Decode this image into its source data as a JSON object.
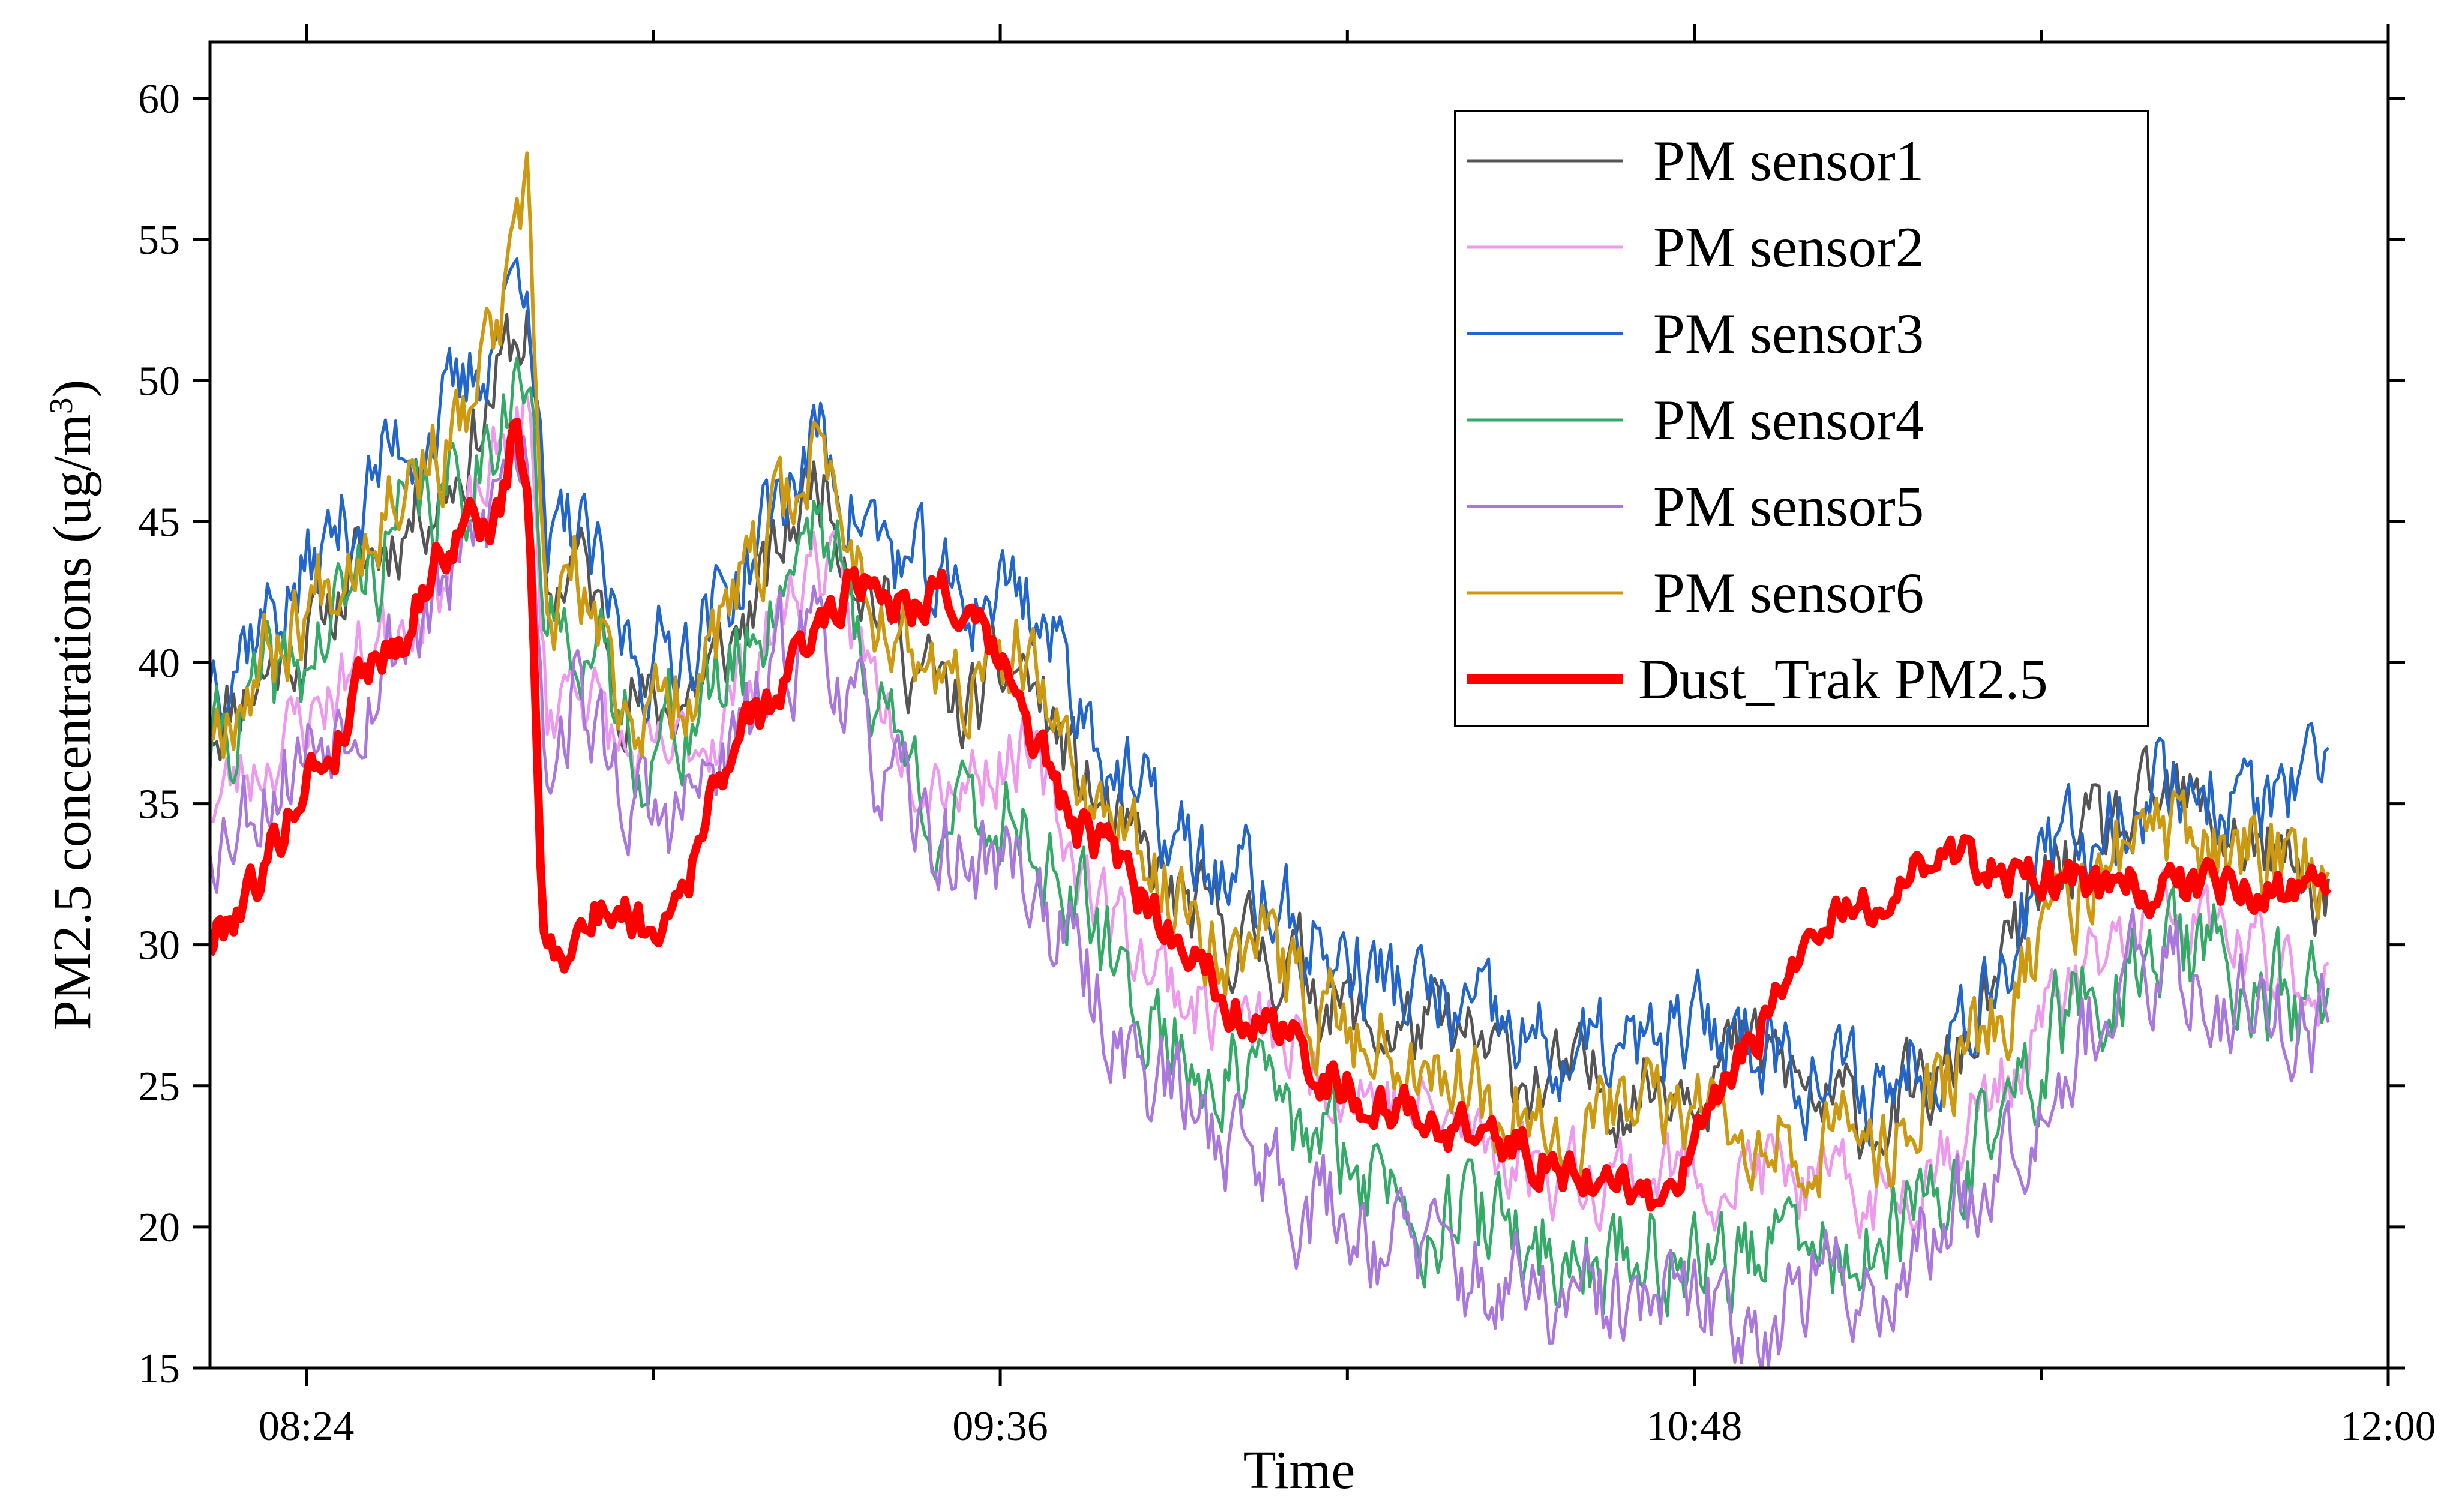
{
  "chart_data": {
    "type": "line",
    "title": "",
    "xlabel": "Time",
    "ylabel_main": "PM2.5 concentrations (ug/m",
    "ylabel_sup": "3",
    "ylabel_close": ")",
    "xlim": [
      494,
      720
    ],
    "ylim": [
      15,
      62
    ],
    "x_ticks": [
      {
        "value": 504,
        "label": "08:24"
      },
      {
        "value": 576,
        "label": "09:36"
      },
      {
        "value": 648,
        "label": "10:48"
      },
      {
        "value": 720,
        "label": "12:00"
      }
    ],
    "x_minor_ticks": [
      540,
      612,
      684
    ],
    "y_ticks": [
      15,
      20,
      25,
      30,
      35,
      40,
      45,
      50,
      55,
      60
    ],
    "x_unit": "minutes since 00:00",
    "legend_position": "top-right",
    "series": [
      {
        "name": "PM sensor1",
        "color": "#555555",
        "width": 5,
        "seed": 11,
        "noise": 1.5,
        "offset_pts": [
          [
            494,
            38
          ],
          [
            504,
            41
          ],
          [
            514,
            45
          ],
          [
            520,
            47
          ],
          [
            525,
            51
          ],
          [
            527,
            52
          ],
          [
            529,
            42
          ],
          [
            532,
            44
          ],
          [
            536,
            40
          ],
          [
            540,
            38
          ],
          [
            547,
            40
          ],
          [
            552,
            43
          ],
          [
            557,
            47
          ],
          [
            562,
            43
          ],
          [
            567,
            40
          ],
          [
            572,
            38
          ],
          [
            578,
            40
          ],
          [
            584,
            36
          ],
          [
            590,
            33
          ],
          [
            596,
            31
          ],
          [
            602,
            30
          ],
          [
            608,
            29
          ],
          [
            614,
            27
          ],
          [
            620,
            27
          ],
          [
            626,
            26
          ],
          [
            634,
            25
          ],
          [
            642,
            25
          ],
          [
            650,
            26
          ],
          [
            656,
            26
          ],
          [
            662,
            24
          ],
          [
            668,
            24
          ],
          [
            674,
            25
          ],
          [
            680,
            29
          ],
          [
            686,
            33
          ],
          [
            692,
            34
          ],
          [
            698,
            35
          ],
          [
            704,
            34
          ],
          [
            708,
            33
          ],
          [
            712,
            32
          ],
          [
            714,
            32
          ]
        ]
      },
      {
        "name": "PM sensor2",
        "color": "#ee99ee",
        "width": 5,
        "seed": 23,
        "noise": 1.4,
        "offset_pts": [
          [
            494,
            35
          ],
          [
            504,
            38
          ],
          [
            514,
            42
          ],
          [
            520,
            44
          ],
          [
            525,
            48
          ],
          [
            527,
            49
          ],
          [
            529,
            38
          ],
          [
            532,
            40
          ],
          [
            536,
            37
          ],
          [
            540,
            36
          ],
          [
            547,
            38
          ],
          [
            552,
            41
          ],
          [
            557,
            44
          ],
          [
            562,
            40
          ],
          [
            567,
            37
          ],
          [
            572,
            36
          ],
          [
            578,
            37
          ],
          [
            584,
            33
          ],
          [
            590,
            30
          ],
          [
            596,
            28
          ],
          [
            602,
            27
          ],
          [
            608,
            26
          ],
          [
            614,
            25
          ],
          [
            620,
            24
          ],
          [
            626,
            23
          ],
          [
            634,
            22
          ],
          [
            642,
            22
          ],
          [
            650,
            22
          ],
          [
            656,
            22
          ],
          [
            662,
            21
          ],
          [
            668,
            21
          ],
          [
            674,
            23
          ],
          [
            680,
            25
          ],
          [
            686,
            28
          ],
          [
            692,
            30
          ],
          [
            698,
            31
          ],
          [
            704,
            30
          ],
          [
            708,
            29
          ],
          [
            712,
            29
          ],
          [
            714,
            29
          ]
        ]
      },
      {
        "name": "PM sensor3",
        "color": "#2266cc",
        "width": 5,
        "seed": 37,
        "noise": 1.7,
        "offset_pts": [
          [
            494,
            40
          ],
          [
            504,
            43
          ],
          [
            514,
            48
          ],
          [
            520,
            49
          ],
          [
            525,
            53
          ],
          [
            527,
            55
          ],
          [
            529,
            43
          ],
          [
            532,
            45
          ],
          [
            536,
            41
          ],
          [
            540,
            40
          ],
          [
            547,
            42
          ],
          [
            552,
            45
          ],
          [
            557,
            48
          ],
          [
            562,
            45
          ],
          [
            567,
            43
          ],
          [
            572,
            42
          ],
          [
            578,
            43
          ],
          [
            584,
            39
          ],
          [
            590,
            35
          ],
          [
            596,
            33
          ],
          [
            602,
            32
          ],
          [
            608,
            30
          ],
          [
            614,
            29
          ],
          [
            620,
            28
          ],
          [
            626,
            27
          ],
          [
            634,
            26
          ],
          [
            642,
            26
          ],
          [
            650,
            27
          ],
          [
            656,
            27
          ],
          [
            662,
            25
          ],
          [
            668,
            25
          ],
          [
            674,
            27
          ],
          [
            680,
            30
          ],
          [
            686,
            33
          ],
          [
            692,
            35
          ],
          [
            698,
            36
          ],
          [
            704,
            35
          ],
          [
            708,
            35
          ],
          [
            712,
            35
          ],
          [
            714,
            35
          ]
        ]
      },
      {
        "name": "PM sensor4",
        "color": "#33aa66",
        "width": 5,
        "seed": 41,
        "noise": 1.8,
        "offset_pts": [
          [
            494,
            37
          ],
          [
            504,
            40
          ],
          [
            514,
            45
          ],
          [
            520,
            46
          ],
          [
            525,
            50
          ],
          [
            527,
            50
          ],
          [
            529,
            40
          ],
          [
            532,
            42
          ],
          [
            536,
            38
          ],
          [
            540,
            37
          ],
          [
            547,
            39
          ],
          [
            552,
            42
          ],
          [
            557,
            46
          ],
          [
            562,
            40
          ],
          [
            567,
            36
          ],
          [
            572,
            34
          ],
          [
            578,
            35
          ],
          [
            584,
            31
          ],
          [
            590,
            28
          ],
          [
            596,
            26
          ],
          [
            602,
            25
          ],
          [
            608,
            23
          ],
          [
            614,
            22
          ],
          [
            620,
            21
          ],
          [
            626,
            20
          ],
          [
            634,
            19
          ],
          [
            642,
            19
          ],
          [
            650,
            19
          ],
          [
            656,
            19
          ],
          [
            662,
            19
          ],
          [
            668,
            19
          ],
          [
            674,
            21
          ],
          [
            680,
            24
          ],
          [
            686,
            27
          ],
          [
            692,
            29
          ],
          [
            698,
            30
          ],
          [
            704,
            29
          ],
          [
            708,
            28
          ],
          [
            712,
            28
          ],
          [
            714,
            28
          ]
        ]
      },
      {
        "name": "PM sensor5",
        "color": "#aa77dd",
        "width": 5,
        "seed": 53,
        "noise": 1.8,
        "offset_pts": [
          [
            494,
            34
          ],
          [
            504,
            37
          ],
          [
            514,
            41
          ],
          [
            520,
            43
          ],
          [
            525,
            47
          ],
          [
            527,
            48
          ],
          [
            529,
            37
          ],
          [
            532,
            39
          ],
          [
            536,
            36
          ],
          [
            540,
            34
          ],
          [
            547,
            36
          ],
          [
            552,
            39
          ],
          [
            557,
            42
          ],
          [
            562,
            37
          ],
          [
            567,
            34
          ],
          [
            572,
            33
          ],
          [
            578,
            33
          ],
          [
            584,
            29
          ],
          [
            590,
            26
          ],
          [
            596,
            24
          ],
          [
            602,
            23
          ],
          [
            608,
            21
          ],
          [
            614,
            20
          ],
          [
            620,
            19
          ],
          [
            626,
            18
          ],
          [
            634,
            17
          ],
          [
            642,
            17
          ],
          [
            650,
            17
          ],
          [
            656,
            17
          ],
          [
            662,
            18
          ],
          [
            668,
            18
          ],
          [
            674,
            20
          ],
          [
            680,
            23
          ],
          [
            686,
            26
          ],
          [
            692,
            28
          ],
          [
            698,
            29
          ],
          [
            704,
            28
          ],
          [
            708,
            28
          ],
          [
            712,
            27
          ],
          [
            714,
            27
          ]
        ]
      },
      {
        "name": "PM sensor6",
        "color": "#cc9911",
        "width": 6,
        "seed": 67,
        "noise": 1.6,
        "offset_pts": [
          [
            494,
            38
          ],
          [
            504,
            42
          ],
          [
            514,
            47
          ],
          [
            520,
            48
          ],
          [
            525,
            53
          ],
          [
            527,
            56
          ],
          [
            529,
            41
          ],
          [
            532,
            43
          ],
          [
            536,
            39
          ],
          [
            540,
            38
          ],
          [
            547,
            41
          ],
          [
            552,
            44
          ],
          [
            557,
            48
          ],
          [
            562,
            43
          ],
          [
            567,
            40
          ],
          [
            572,
            39
          ],
          [
            578,
            40
          ],
          [
            584,
            36
          ],
          [
            590,
            33
          ],
          [
            596,
            31
          ],
          [
            602,
            30
          ],
          [
            608,
            28
          ],
          [
            614,
            27
          ],
          [
            620,
            26
          ],
          [
            626,
            25
          ],
          [
            634,
            24
          ],
          [
            642,
            24
          ],
          [
            650,
            24
          ],
          [
            656,
            24
          ],
          [
            662,
            23
          ],
          [
            668,
            23
          ],
          [
            674,
            25
          ],
          [
            680,
            28
          ],
          [
            686,
            31
          ],
          [
            692,
            33
          ],
          [
            698,
            34
          ],
          [
            704,
            33
          ],
          [
            708,
            33
          ],
          [
            712,
            33
          ],
          [
            714,
            32
          ]
        ]
      },
      {
        "name": "Dust_Trak PM2.5",
        "color": "#ff0000",
        "width": 14,
        "seed": 79,
        "noise": 0.8,
        "offset_pts": [
          [
            494,
            30
          ],
          [
            496,
            31
          ],
          [
            500,
            33
          ],
          [
            504,
            36
          ],
          [
            507,
            37
          ],
          [
            510,
            40
          ],
          [
            514,
            41
          ],
          [
            518,
            44
          ],
          [
            521,
            45
          ],
          [
            524,
            45
          ],
          [
            525.8,
            48.5
          ],
          [
            527,
            46
          ],
          [
            528.5,
            30.5
          ],
          [
            531,
            30
          ],
          [
            534,
            31
          ],
          [
            536,
            31.5
          ],
          [
            540,
            30.5
          ],
          [
            544,
            33
          ],
          [
            548,
            37
          ],
          [
            551,
            38
          ],
          [
            555,
            40
          ],
          [
            558,
            42
          ],
          [
            561,
            43
          ],
          [
            563,
            43
          ],
          [
            566,
            42
          ],
          [
            570,
            43
          ],
          [
            573,
            41
          ],
          [
            576,
            40
          ],
          [
            580,
            37
          ],
          [
            584,
            34
          ],
          [
            588,
            33
          ],
          [
            592,
            31
          ],
          [
            596,
            30
          ],
          [
            600,
            28
          ],
          [
            604,
            27
          ],
          [
            608,
            26
          ],
          [
            612,
            25
          ],
          [
            616,
            24
          ],
          [
            620,
            24
          ],
          [
            624,
            23.5
          ],
          [
            628,
            23
          ],
          [
            632,
            22.5
          ],
          [
            636,
            22
          ],
          [
            640,
            21.5
          ],
          [
            644,
            21
          ],
          [
            646,
            21.5
          ],
          [
            648,
            23
          ],
          [
            652,
            25
          ],
          [
            656,
            28
          ],
          [
            660,
            30
          ],
          [
            664,
            31
          ],
          [
            668,
            32
          ],
          [
            672,
            33
          ],
          [
            676,
            33
          ],
          [
            680,
            33
          ],
          [
            684,
            32
          ],
          [
            688,
            32
          ],
          [
            692,
            32
          ],
          [
            696,
            32
          ],
          [
            700,
            32
          ],
          [
            704,
            32
          ],
          [
            708,
            32
          ],
          [
            712,
            32
          ],
          [
            714,
            32
          ]
        ]
      }
    ]
  }
}
